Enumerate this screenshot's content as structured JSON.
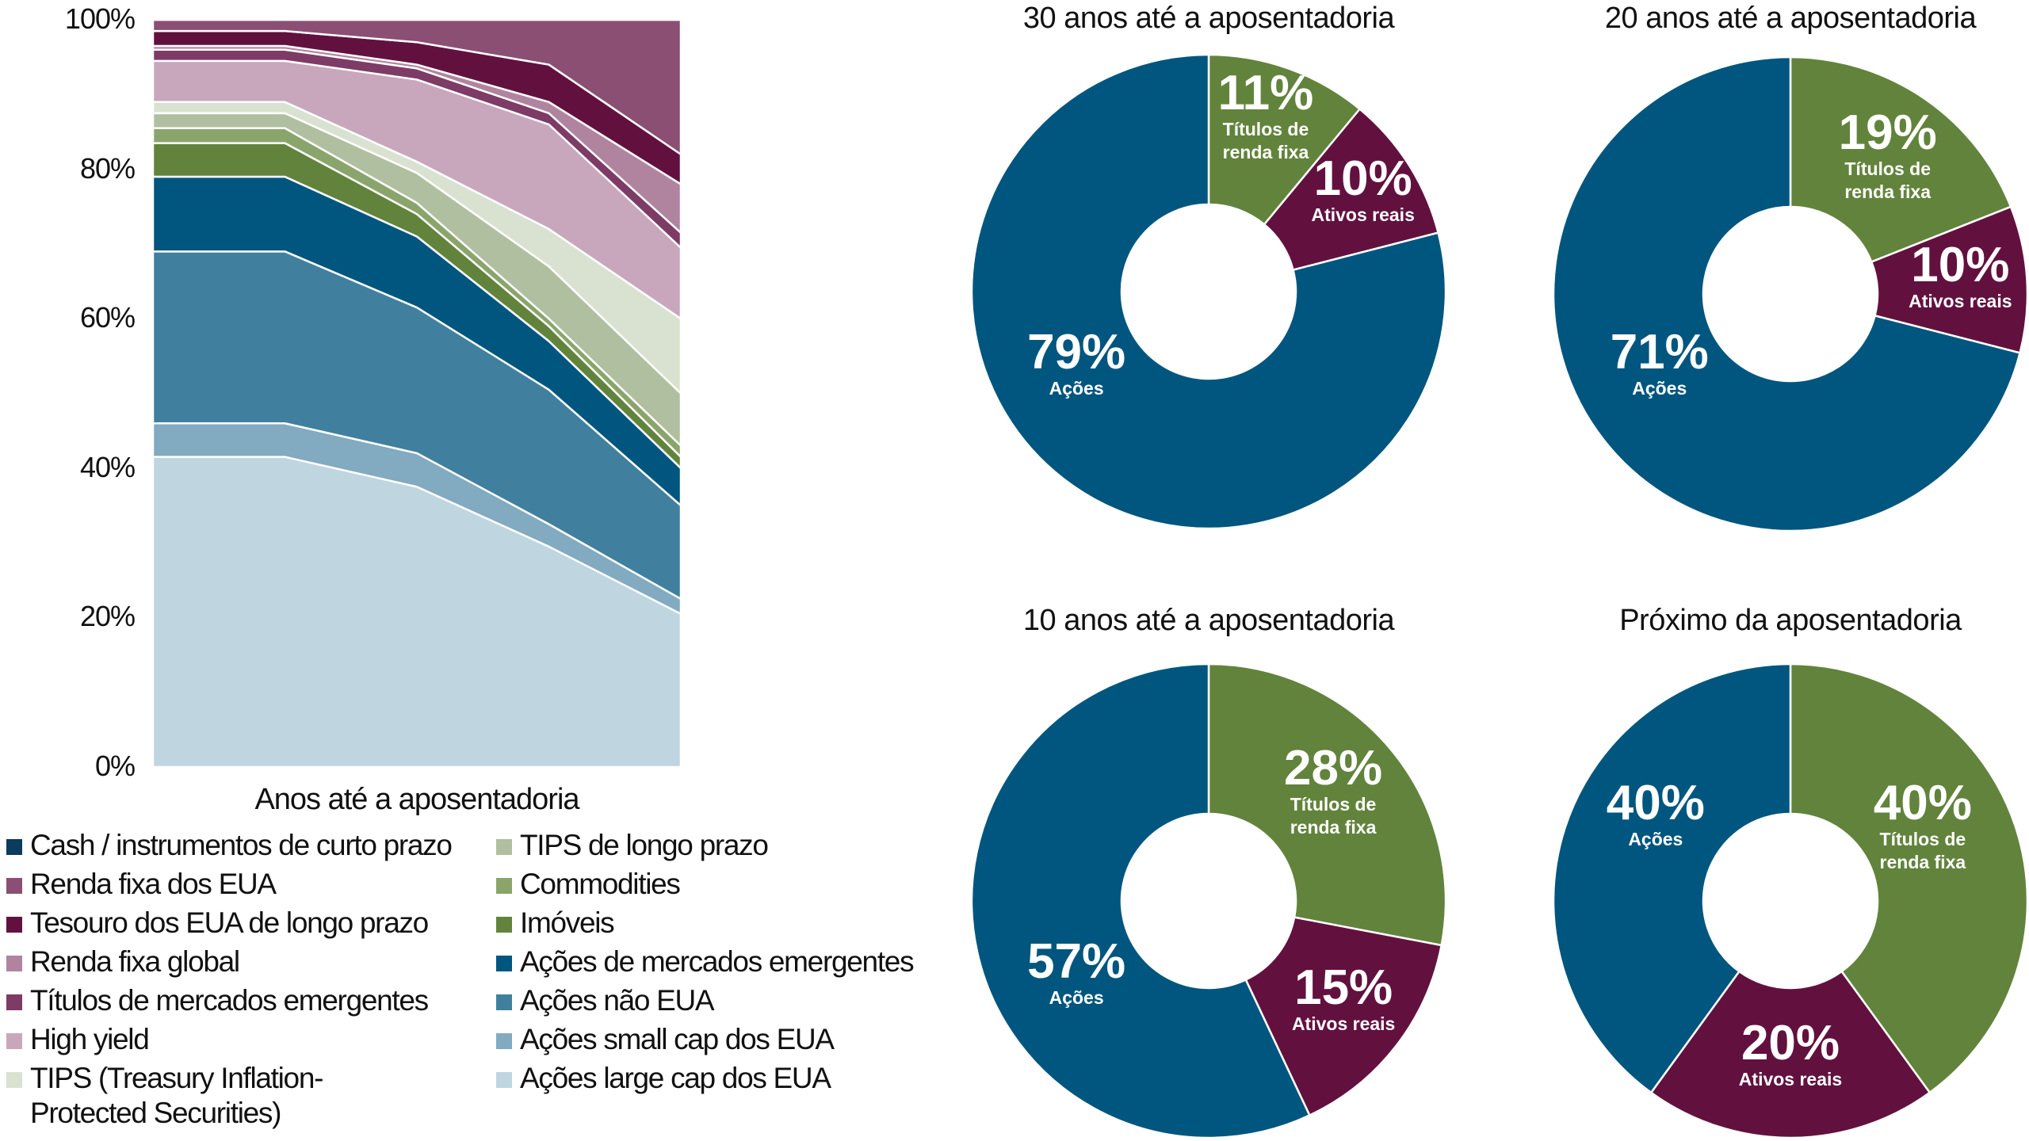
{
  "chart_data": [
    {
      "type": "area",
      "stacked": true,
      "xlabel": "Anos até a aposentadoria",
      "ylabel": "",
      "x": [
        40,
        30,
        20,
        10,
        0
      ],
      "ylim": [
        0,
        100
      ],
      "yticks": [
        "0%",
        "20%",
        "40%",
        "60%",
        "80%",
        "100%"
      ],
      "grid": false,
      "legend_position": "bottom",
      "series": [
        {
          "name": "Ações large cap dos EUA",
          "color": "#bfd5e0",
          "values": [
            41.5,
            41.5,
            37.5,
            29.5,
            20.5
          ]
        },
        {
          "name": "Ações small cap dos EUA",
          "color": "#82aac0",
          "values": [
            4.5,
            4.5,
            4.5,
            3,
            2
          ]
        },
        {
          "name": "Ações não EUA",
          "color": "#40809e",
          "values": [
            23,
            23,
            19.5,
            18,
            12.5
          ]
        },
        {
          "name": "Ações de mercados emergentes",
          "color": "#00567e",
          "values": [
            10,
            10,
            9.5,
            6.5,
            5
          ]
        },
        {
          "name": "Imóveis",
          "color": "#62833c",
          "values": [
            4.5,
            4.5,
            3,
            2,
            1.5
          ]
        },
        {
          "name": "Commodities",
          "color": "#8aa56c",
          "values": [
            2,
            2,
            1.5,
            1,
            1.5
          ]
        },
        {
          "name": "TIPS de longo prazo",
          "color": "#b0bf9f",
          "values": [
            2,
            2,
            4,
            7,
            7
          ]
        },
        {
          "name": "TIPS (Treasury Inflation-Protected Securities)",
          "color": "#d9e2d0",
          "values": [
            1.5,
            1.5,
            1.5,
            5,
            10
          ]
        },
        {
          "name": "High yield",
          "color": "#c8a7bd",
          "values": [
            5.5,
            5.5,
            11,
            14,
            9.5
          ]
        },
        {
          "name": "Títulos de mercados emergentes",
          "color": "#7d3b66",
          "values": [
            1.5,
            1.5,
            1.5,
            1.5,
            2
          ]
        },
        {
          "name": "Renda fixa global",
          "color": "#b0849f",
          "values": [
            0.5,
            0.5,
            0.5,
            1.5,
            6.5
          ]
        },
        {
          "name": "Tesouro dos EUA de longo prazo",
          "color": "#62113f",
          "values": [
            2,
            2,
            3,
            5,
            4
          ]
        },
        {
          "name": "Renda fixa dos EUA",
          "color": "#8b4f74",
          "values": [
            1.5,
            1.5,
            3,
            6,
            18
          ]
        },
        {
          "name": "Cash / instrumentos de curto prazo",
          "color": "#0b3c5d",
          "values": [
            0,
            0,
            0,
            0,
            0
          ]
        }
      ],
      "legend": {
        "left": [
          "Cash / instrumentos de curto prazo",
          "Renda fixa dos EUA",
          "Tesouro dos EUA de longo prazo",
          "Renda fixa global",
          "Títulos de mercados emergentes",
          "High yield",
          "TIPS (Treasury Inflation-Protected Securities)"
        ],
        "right": [
          "TIPS de longo prazo",
          "Commodities",
          "Imóveis",
          "Ações de mercados emergentes",
          "Ações não EUA",
          "Ações small cap dos EUA",
          "Ações large cap dos EUA"
        ]
      }
    },
    {
      "type": "pie",
      "donut": true,
      "title": "30 anos até a aposentadoria",
      "slices": [
        {
          "name": "Títulos de renda fixa",
          "value": 11,
          "label": "11%",
          "color": "#62833c"
        },
        {
          "name": "Ativos reais",
          "value": 10,
          "label": "10%",
          "color": "#62113f"
        },
        {
          "name": "Ações",
          "value": 79,
          "label": "79%",
          "color": "#00567e"
        }
      ]
    },
    {
      "type": "pie",
      "donut": true,
      "title": "20 anos até a aposentadoria",
      "slices": [
        {
          "name": "Títulos de renda fixa",
          "value": 19,
          "label": "19%",
          "color": "#62833c"
        },
        {
          "name": "Ativos reais",
          "value": 10,
          "label": "10%",
          "color": "#62113f"
        },
        {
          "name": "Ações",
          "value": 71,
          "label": "71%",
          "color": "#00567e"
        }
      ]
    },
    {
      "type": "pie",
      "donut": true,
      "title": "10 anos até a aposentadoria",
      "slices": [
        {
          "name": "Títulos de renda fixa",
          "value": 28,
          "label": "28%",
          "color": "#62833c"
        },
        {
          "name": "Ativos reais",
          "value": 15,
          "label": "15%",
          "color": "#62113f"
        },
        {
          "name": "Ações",
          "value": 57,
          "label": "57%",
          "color": "#00567e"
        }
      ]
    },
    {
      "type": "pie",
      "donut": true,
      "title": "Próximo da aposentadoria",
      "slices": [
        {
          "name": "Títulos de renda fixa",
          "value": 40,
          "label": "40%",
          "color": "#62833c"
        },
        {
          "name": "Ativos reais",
          "value": 20,
          "label": "20%",
          "color": "#62113f"
        },
        {
          "name": "Ações",
          "value": 40,
          "label": "40%",
          "color": "#00567e"
        }
      ]
    }
  ]
}
